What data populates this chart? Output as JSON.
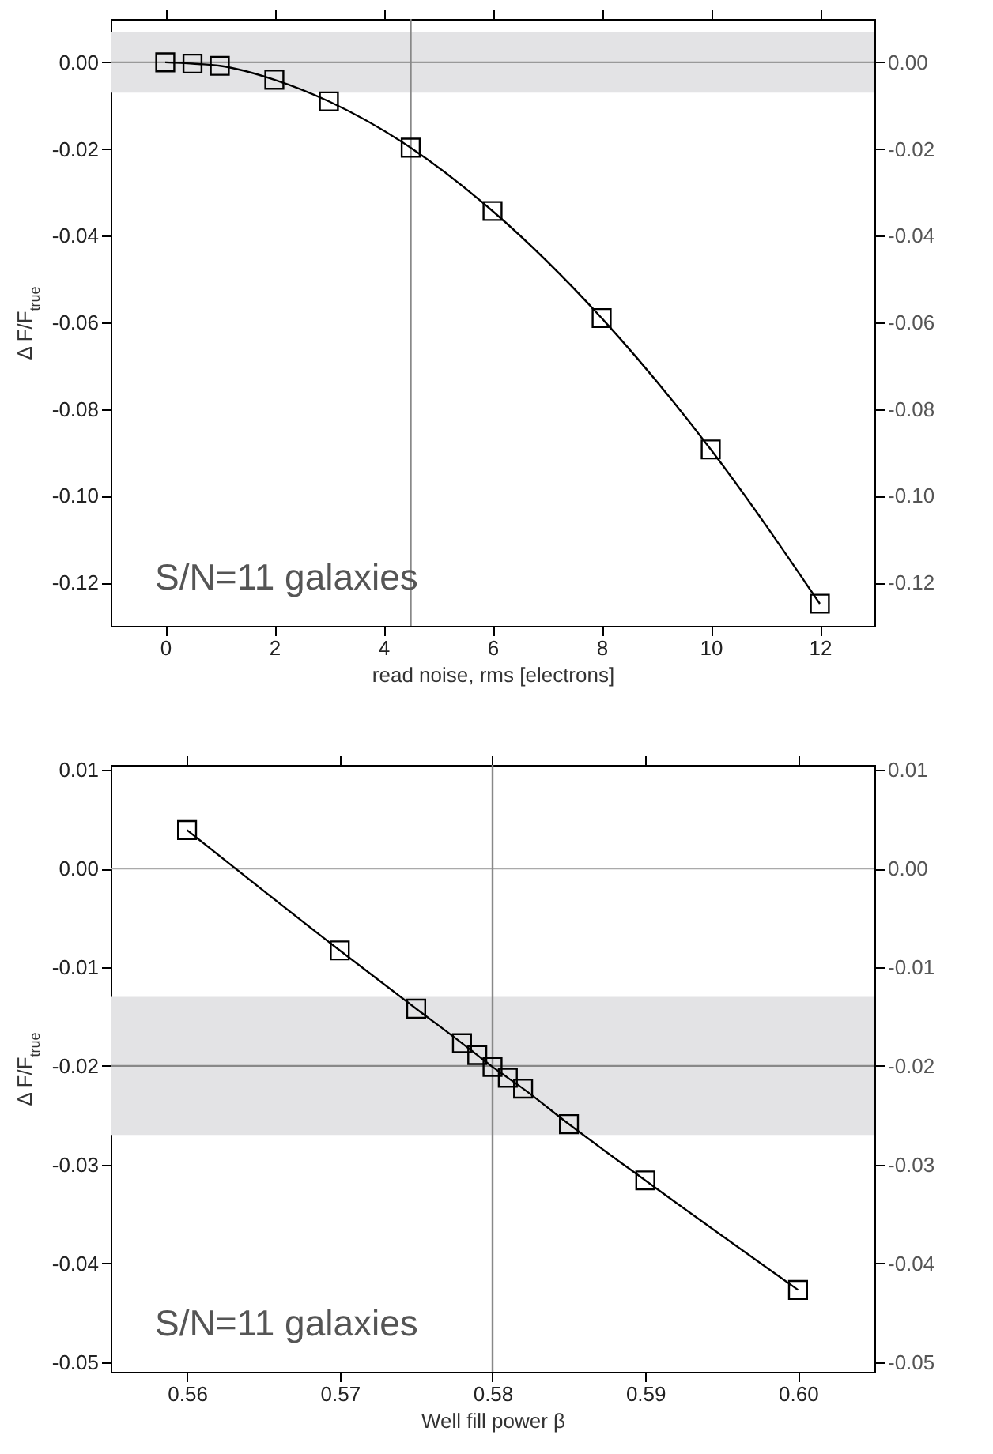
{
  "chart_data": [
    {
      "type": "line",
      "xlabel": "read noise, rms [electrons]",
      "ylabel": "Δ F/F$_{true}$",
      "annotations": [
        "S/N=11 galaxies"
      ],
      "x": [
        0,
        0.5,
        1,
        2,
        3,
        4.5,
        6,
        8,
        10,
        12
      ],
      "series": [
        {
          "color": "#000000",
          "values": [
            0,
            -0.0003,
            -0.0008,
            -0.004,
            -0.009,
            -0.0197,
            -0.0343,
            -0.059,
            -0.0893,
            -0.1249
          ]
        }
      ],
      "xlim": [
        -1,
        13
      ],
      "xticks": [
        0,
        2,
        4,
        6,
        8,
        10,
        12
      ],
      "ylim": [
        -0.13,
        0.01
      ],
      "yticks": [
        {
          "value": 0,
          "label": "0.00"
        },
        {
          "value": -0.02,
          "label": "-0.02"
        },
        {
          "value": -0.04,
          "label": "-0.04"
        },
        {
          "value": -0.06,
          "label": "-0.06"
        },
        {
          "value": -0.08,
          "label": "-0.08"
        },
        {
          "value": -0.1,
          "label": "-0.10"
        },
        {
          "value": -0.12,
          "label": "-0.12"
        }
      ],
      "y2lim": [
        -0.13,
        0.01
      ],
      "y2ticks": [
        {
          "value": 0,
          "label": "0.00"
        },
        {
          "value": -0.02,
          "label": "-0.02"
        },
        {
          "value": -0.04,
          "label": "-0.04"
        },
        {
          "value": -0.06,
          "label": "-0.06"
        },
        {
          "value": -0.08,
          "label": "-0.08"
        },
        {
          "value": -0.1,
          "label": "-0.10"
        },
        {
          "value": -0.12,
          "label": "-0.12"
        }
      ],
      "ref_lines": [
        {
          "axis": "y",
          "value": 0,
          "color": "#999999"
        },
        {
          "axis": "x",
          "value": 4.5,
          "color": "#888888"
        }
      ],
      "bands": [
        {
          "axis": "y",
          "from": -0.007,
          "to": 0.007,
          "color": "#e3e3e5"
        }
      ],
      "marker": "square",
      "grid": false
    },
    {
      "type": "line",
      "xlabel": "Well fill power β",
      "ylabel": "Δ F/F$_{true}$",
      "annotations": [
        "S/N=11 galaxies"
      ],
      "x": [
        0.56,
        0.57,
        0.575,
        0.578,
        0.579,
        0.58,
        0.581,
        0.582,
        0.585,
        0.59,
        0.6
      ],
      "series": [
        {
          "color": "#000000",
          "values": [
            0.0039,
            -0.0083,
            -0.0142,
            -0.0177,
            -0.0189,
            -0.0201,
            -0.0212,
            -0.0223,
            -0.0259,
            -0.0316,
            -0.0427
          ]
        }
      ],
      "xlim": [
        0.555,
        0.605
      ],
      "xticks": [
        0.56,
        0.57,
        0.58,
        0.59,
        {
          "value": 0.6,
          "label": "0.60"
        }
      ],
      "ylim": [
        -0.051,
        0.0105
      ],
      "yticks": [
        0.01,
        {
          "value": 0,
          "label": "0.00"
        },
        -0.01,
        -0.02,
        -0.03,
        -0.04,
        -0.05
      ],
      "y2lim": [
        -0.051,
        0.0105
      ],
      "y2ticks": [
        0.01,
        {
          "value": 0,
          "label": "0.00"
        },
        -0.01,
        -0.02,
        -0.03,
        -0.04,
        -0.05
      ],
      "ref_lines": [
        {
          "axis": "y",
          "value": 0,
          "color": "#aaaaaa"
        },
        {
          "axis": "y",
          "value": -0.02,
          "color": "#888888"
        },
        {
          "axis": "x",
          "value": 0.58,
          "color": "#888888"
        }
      ],
      "bands": [
        {
          "axis": "y",
          "from": -0.027,
          "to": -0.013,
          "color": "#e3e3e5"
        }
      ],
      "marker": "square",
      "grid": false
    }
  ]
}
